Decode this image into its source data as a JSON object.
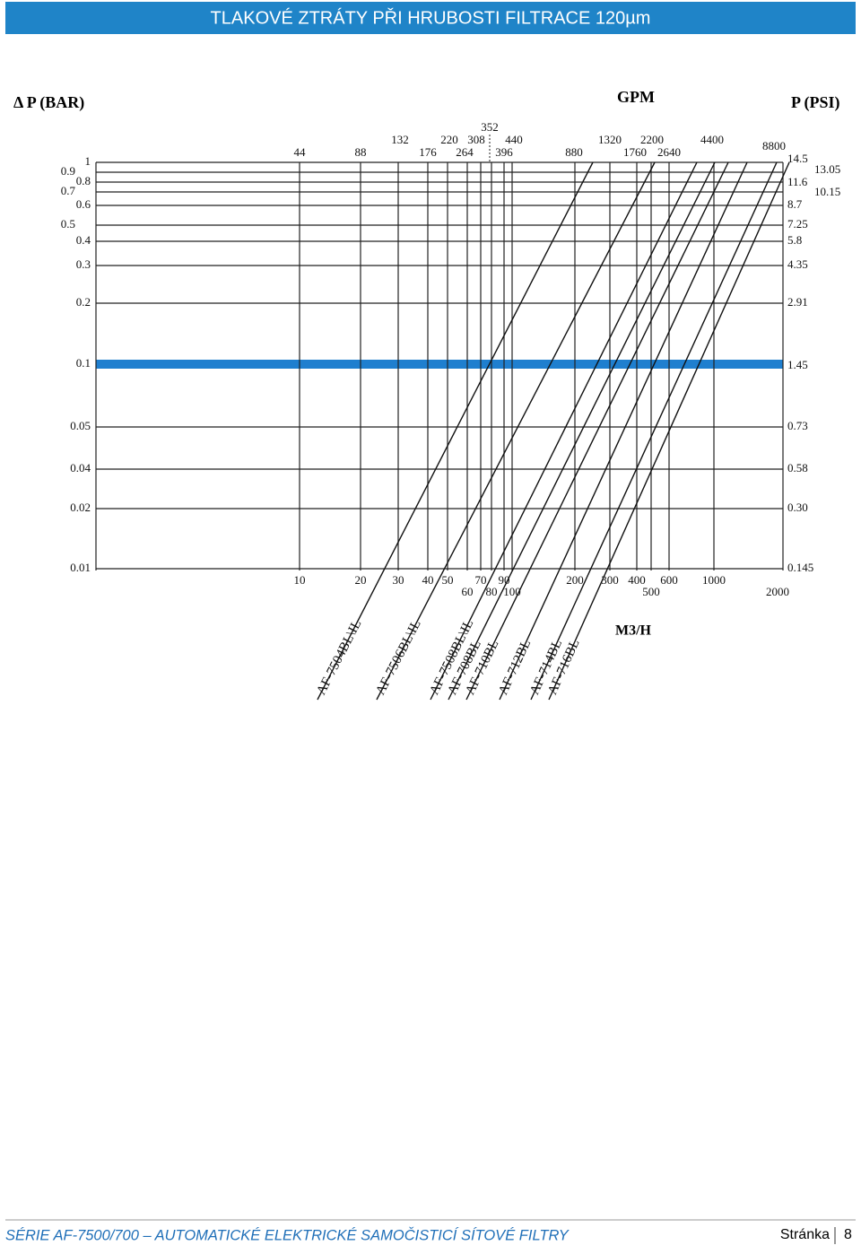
{
  "header": {
    "title": "TLAKOVÉ ZTRÁTY PŘI HRUBOSTI FILTRACE 120µm"
  },
  "figure": {
    "left_axis_label": "Δ P (BAR)",
    "gpm_label": "GPM",
    "right_axis_label": "P (PSI)",
    "m3h_label": "M3/H",
    "bar_ticks": [
      1,
      0.9,
      0.8,
      0.7,
      0.6,
      0.5,
      0.4,
      0.3,
      0.2,
      0.1,
      0.05,
      0.04,
      0.02,
      0.01
    ],
    "psi_ticks": [
      14.5,
      11.6,
      8.7,
      7.25,
      5.8,
      4.35,
      2.91,
      1.45,
      0.73,
      0.58,
      "0.30",
      0.145
    ],
    "psi_extra_ticks": [
      13.05,
      10.15
    ],
    "gpm_ticks": [
      44,
      88,
      132,
      176,
      220,
      264,
      308,
      352,
      396,
      440,
      880,
      1320,
      1760,
      2200,
      2640,
      4400,
      8800
    ],
    "m3h_ticks": [
      10,
      20,
      30,
      40,
      50,
      60,
      70,
      80,
      90,
      100,
      200,
      300,
      400,
      500,
      600,
      1000,
      2000
    ],
    "filters": [
      "AF-7504BL\\IL",
      "AF-7506BL\\IL",
      "AF-7508BL\\IL",
      "AF-708BL",
      "AF-710BL",
      "AF-712BL",
      "AF-714BL",
      "AF-716BL"
    ]
  },
  "footer": {
    "series": "SÉRIE AF-7500/700 – AUTOMATICKÉ ELEKTRICKÉ SAMOČISTICÍ SÍTOVÉ FILTRY",
    "page_label": "Stránka",
    "page_number": 8
  }
}
